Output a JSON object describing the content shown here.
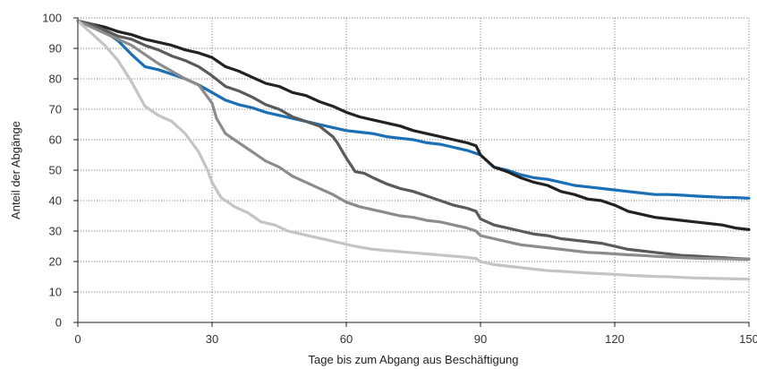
{
  "chart_data": {
    "type": "line",
    "title": "",
    "xlabel": "Tage bis zum Abgang aus Beschäftigung",
    "ylabel": "Anteil der Abgänge",
    "xlim": [
      0,
      150
    ],
    "ylim": [
      0,
      100
    ],
    "xticks": [
      0,
      30,
      60,
      90,
      120,
      150
    ],
    "yticks": [
      0,
      10,
      20,
      30,
      40,
      50,
      60,
      70,
      80,
      90,
      100
    ],
    "grid": true,
    "legend": "none",
    "series": [
      {
        "color": "#1a6fb5",
        "points": [
          [
            0,
            99
          ],
          [
            3,
            97.5
          ],
          [
            6,
            95.5
          ],
          [
            9,
            92.5
          ],
          [
            12,
            88
          ],
          [
            15,
            84
          ],
          [
            18,
            83
          ],
          [
            21,
            81.5
          ],
          [
            24,
            80
          ],
          [
            27,
            78
          ],
          [
            30,
            75.5
          ],
          [
            33,
            73
          ],
          [
            36,
            71.5
          ],
          [
            39,
            70.5
          ],
          [
            42,
            69
          ],
          [
            45,
            68
          ],
          [
            48,
            67
          ],
          [
            51,
            66
          ],
          [
            54,
            65
          ],
          [
            57,
            64
          ],
          [
            60,
            63
          ],
          [
            63,
            62.5
          ],
          [
            66,
            62
          ],
          [
            69,
            61
          ],
          [
            72,
            60.5
          ],
          [
            75,
            60
          ],
          [
            78,
            59
          ],
          [
            81,
            58.5
          ],
          [
            84,
            57.5
          ],
          [
            87,
            56.5
          ],
          [
            90,
            55
          ],
          [
            93,
            51
          ],
          [
            96,
            50
          ],
          [
            99,
            48.5
          ],
          [
            102,
            47.5
          ],
          [
            105,
            47
          ],
          [
            108,
            46
          ],
          [
            111,
            45
          ],
          [
            114,
            44.5
          ],
          [
            117,
            44
          ],
          [
            120,
            43.5
          ],
          [
            123,
            43
          ],
          [
            126,
            42.5
          ],
          [
            129,
            42
          ],
          [
            132,
            42
          ],
          [
            135,
            41.8
          ],
          [
            138,
            41.5
          ],
          [
            141,
            41.3
          ],
          [
            144,
            41.1
          ],
          [
            147,
            41
          ],
          [
            150,
            40.8
          ]
        ]
      },
      {
        "color": "#222222",
        "points": [
          [
            0,
            99
          ],
          [
            3,
            98
          ],
          [
            6,
            97
          ],
          [
            9,
            95.5
          ],
          [
            12,
            94.5
          ],
          [
            15,
            93
          ],
          [
            18,
            92
          ],
          [
            21,
            91
          ],
          [
            24,
            89.5
          ],
          [
            27,
            88.5
          ],
          [
            30,
            87
          ],
          [
            33,
            84
          ],
          [
            36,
            82.5
          ],
          [
            39,
            80.5
          ],
          [
            42,
            78.5
          ],
          [
            45,
            77.5
          ],
          [
            48,
            75.5
          ],
          [
            51,
            74.5
          ],
          [
            54,
            72.5
          ],
          [
            57,
            71
          ],
          [
            60,
            69
          ],
          [
            63,
            67.5
          ],
          [
            66,
            66.5
          ],
          [
            69,
            65.5
          ],
          [
            72,
            64.5
          ],
          [
            75,
            63
          ],
          [
            78,
            62
          ],
          [
            81,
            61
          ],
          [
            84,
            60
          ],
          [
            87,
            59
          ],
          [
            89,
            58
          ],
          [
            90,
            55
          ],
          [
            93,
            51
          ],
          [
            96,
            49.5
          ],
          [
            99,
            47.5
          ],
          [
            102,
            46
          ],
          [
            105,
            45
          ],
          [
            108,
            43
          ],
          [
            111,
            42
          ],
          [
            114,
            40.5
          ],
          [
            117,
            40
          ],
          [
            120,
            38.5
          ],
          [
            123,
            36.5
          ],
          [
            126,
            35.5
          ],
          [
            129,
            34.5
          ],
          [
            132,
            34
          ],
          [
            135,
            33.5
          ],
          [
            138,
            33
          ],
          [
            141,
            32.5
          ],
          [
            144,
            32
          ],
          [
            147,
            31
          ],
          [
            150,
            30.5
          ]
        ]
      },
      {
        "color": "#5a5a5a",
        "points": [
          [
            0,
            99
          ],
          [
            3,
            98
          ],
          [
            6,
            96
          ],
          [
            9,
            94
          ],
          [
            12,
            93
          ],
          [
            15,
            91
          ],
          [
            18,
            89.5
          ],
          [
            21,
            87.5
          ],
          [
            24,
            86
          ],
          [
            27,
            84
          ],
          [
            30,
            81
          ],
          [
            33,
            77.5
          ],
          [
            36,
            76
          ],
          [
            39,
            74
          ],
          [
            42,
            71.5
          ],
          [
            45,
            70
          ],
          [
            48,
            67.5
          ],
          [
            51,
            66
          ],
          [
            54,
            64.5
          ],
          [
            57,
            61
          ],
          [
            58,
            59
          ],
          [
            60,
            54
          ],
          [
            62,
            49.5
          ],
          [
            64,
            49
          ],
          [
            66,
            47.5
          ],
          [
            69,
            45.5
          ],
          [
            72,
            44
          ],
          [
            75,
            43
          ],
          [
            78,
            41.5
          ],
          [
            81,
            40
          ],
          [
            84,
            38.5
          ],
          [
            87,
            37.5
          ],
          [
            89,
            36.5
          ],
          [
            90,
            34
          ],
          [
            93,
            32
          ],
          [
            96,
            31
          ],
          [
            99,
            30
          ],
          [
            102,
            29
          ],
          [
            105,
            28.5
          ],
          [
            108,
            27.5
          ],
          [
            111,
            27
          ],
          [
            114,
            26.5
          ],
          [
            117,
            26
          ],
          [
            120,
            25
          ],
          [
            123,
            24
          ],
          [
            126,
            23.5
          ],
          [
            129,
            23
          ],
          [
            132,
            22.5
          ],
          [
            135,
            22
          ],
          [
            138,
            21.8
          ],
          [
            141,
            21.5
          ],
          [
            144,
            21.3
          ],
          [
            147,
            21
          ],
          [
            150,
            20.8
          ]
        ]
      },
      {
        "color": "#8c8c8c",
        "points": [
          [
            0,
            99
          ],
          [
            3,
            97
          ],
          [
            6,
            95
          ],
          [
            9,
            93
          ],
          [
            12,
            91
          ],
          [
            15,
            88
          ],
          [
            18,
            85
          ],
          [
            21,
            82.5
          ],
          [
            24,
            80
          ],
          [
            27,
            78
          ],
          [
            28,
            76
          ],
          [
            30,
            72
          ],
          [
            31,
            67
          ],
          [
            33,
            62
          ],
          [
            36,
            59
          ],
          [
            39,
            56
          ],
          [
            42,
            53
          ],
          [
            45,
            51
          ],
          [
            48,
            48
          ],
          [
            51,
            46
          ],
          [
            54,
            44
          ],
          [
            57,
            42
          ],
          [
            60,
            39.5
          ],
          [
            63,
            38
          ],
          [
            66,
            37
          ],
          [
            69,
            36
          ],
          [
            72,
            35
          ],
          [
            75,
            34.5
          ],
          [
            78,
            33.5
          ],
          [
            81,
            33
          ],
          [
            84,
            32
          ],
          [
            87,
            31
          ],
          [
            89,
            30
          ],
          [
            90,
            28.5
          ],
          [
            93,
            27.5
          ],
          [
            96,
            26.5
          ],
          [
            99,
            25.5
          ],
          [
            102,
            25
          ],
          [
            105,
            24.5
          ],
          [
            108,
            24
          ],
          [
            111,
            23.5
          ],
          [
            114,
            23
          ],
          [
            117,
            22.8
          ],
          [
            120,
            22.5
          ],
          [
            123,
            22.2
          ],
          [
            126,
            22
          ],
          [
            129,
            21.7
          ],
          [
            132,
            21.5
          ],
          [
            135,
            21.3
          ],
          [
            138,
            21.1
          ],
          [
            141,
            21
          ],
          [
            144,
            20.9
          ],
          [
            147,
            20.8
          ],
          [
            150,
            20.7
          ]
        ]
      },
      {
        "color": "#c4c4c4",
        "points": [
          [
            0,
            99
          ],
          [
            3,
            95
          ],
          [
            6,
            91
          ],
          [
            9,
            86
          ],
          [
            12,
            79
          ],
          [
            15,
            71
          ],
          [
            18,
            68
          ],
          [
            21,
            66
          ],
          [
            24,
            62
          ],
          [
            26,
            58
          ],
          [
            27,
            56
          ],
          [
            29,
            50
          ],
          [
            30,
            46
          ],
          [
            32,
            41
          ],
          [
            35,
            38
          ],
          [
            38,
            36
          ],
          [
            41,
            33
          ],
          [
            44,
            32
          ],
          [
            47,
            30
          ],
          [
            50,
            29
          ],
          [
            53,
            28
          ],
          [
            56,
            27
          ],
          [
            59,
            26
          ],
          [
            62,
            25
          ],
          [
            66,
            24
          ],
          [
            70,
            23.5
          ],
          [
            74,
            23
          ],
          [
            78,
            22.5
          ],
          [
            82,
            22
          ],
          [
            86,
            21.5
          ],
          [
            89,
            21
          ],
          [
            90,
            20
          ],
          [
            93,
            19
          ],
          [
            96,
            18.5
          ],
          [
            99,
            18
          ],
          [
            102,
            17.5
          ],
          [
            105,
            17
          ],
          [
            108,
            16.8
          ],
          [
            111,
            16.5
          ],
          [
            114,
            16.2
          ],
          [
            117,
            16
          ],
          [
            120,
            15.8
          ],
          [
            123,
            15.5
          ],
          [
            126,
            15.3
          ],
          [
            129,
            15.1
          ],
          [
            132,
            15
          ],
          [
            135,
            14.8
          ],
          [
            138,
            14.6
          ],
          [
            141,
            14.5
          ],
          [
            144,
            14.4
          ],
          [
            147,
            14.3
          ],
          [
            150,
            14.2
          ]
        ]
      }
    ]
  }
}
